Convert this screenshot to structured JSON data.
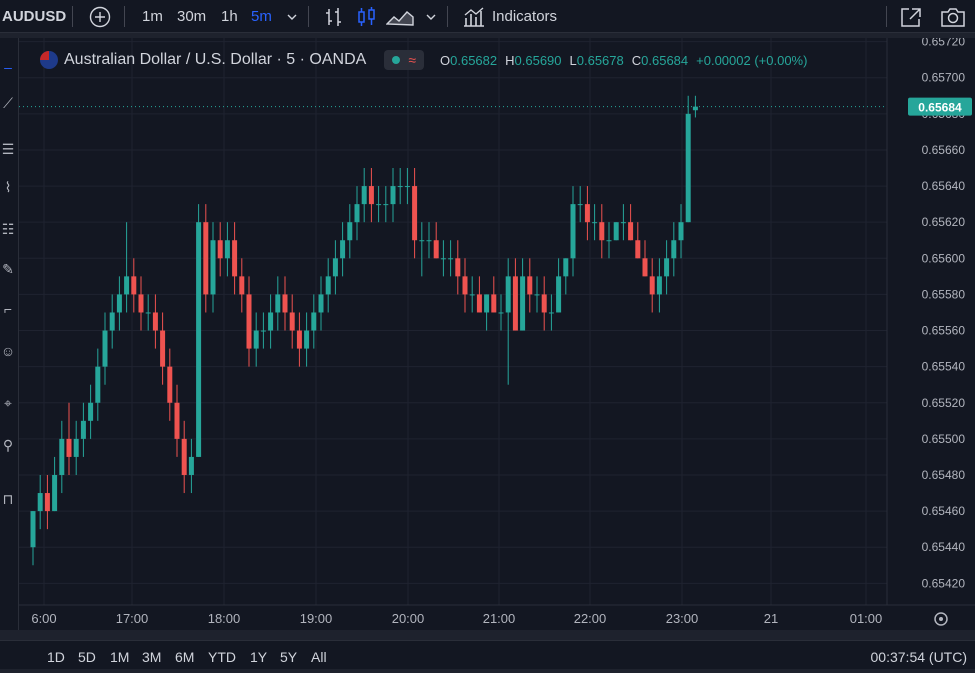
{
  "topbar": {
    "symbol": "AUDUSD",
    "timeframes": [
      "1m",
      "30m",
      "1h",
      "5m"
    ],
    "active_timeframe": "5m",
    "indicators_label": "Indicators"
  },
  "legend": {
    "title": "Australian Dollar / U.S. Dollar · 5 · OANDA",
    "o_label": "O",
    "o_value": "0.65682",
    "h_label": "H",
    "h_value": "0.65690",
    "l_label": "L",
    "l_value": "0.65678",
    "c_label": "C",
    "c_value": "0.65684",
    "change": "+0.00002 (+0.00%)"
  },
  "price_tag": "0.65684",
  "bottombar": {
    "ranges": [
      "1D",
      "5D",
      "1M",
      "3M",
      "6M",
      "YTD",
      "1Y",
      "5Y",
      "All"
    ],
    "clock": "00:37:54 (UTC)"
  },
  "colors": {
    "up": "#26a69a",
    "down": "#ef5350",
    "bg": "#131722",
    "grid": "#1f2330"
  },
  "chart_data": {
    "type": "candlestick",
    "y_ticks": [
      "0.65720",
      "0.65700",
      "0.65680",
      "0.65660",
      "0.65640",
      "0.65620",
      "0.65600",
      "0.65580",
      "0.65560",
      "0.65540",
      "0.65520",
      "0.65500",
      "0.65480",
      "0.65460",
      "0.65440",
      "0.65420"
    ],
    "x_ticks": [
      "6:00",
      "17:00",
      "18:00",
      "19:00",
      "20:00",
      "21:00",
      "22:00",
      "23:00",
      "21",
      "01:00"
    ],
    "ylim": [
      0.65408,
      0.65722
    ],
    "candles": [
      [
        0.6544,
        0.6546,
        0.6543,
        0.6546
      ],
      [
        0.6546,
        0.6548,
        0.6545,
        0.6547
      ],
      [
        0.6547,
        0.6548,
        0.6545,
        0.6546
      ],
      [
        0.6546,
        0.6549,
        0.6546,
        0.6548
      ],
      [
        0.6548,
        0.6551,
        0.6547,
        0.655
      ],
      [
        0.655,
        0.6552,
        0.6548,
        0.6549
      ],
      [
        0.6549,
        0.6551,
        0.6548,
        0.655
      ],
      [
        0.655,
        0.6552,
        0.6549,
        0.6551
      ],
      [
        0.6551,
        0.6553,
        0.655,
        0.6552
      ],
      [
        0.6552,
        0.6555,
        0.6551,
        0.6554
      ],
      [
        0.6554,
        0.6557,
        0.6553,
        0.6556
      ],
      [
        0.6556,
        0.6558,
        0.6555,
        0.6557
      ],
      [
        0.6557,
        0.6559,
        0.6556,
        0.6558
      ],
      [
        0.6558,
        0.6562,
        0.6557,
        0.6559
      ],
      [
        0.6559,
        0.656,
        0.6557,
        0.6558
      ],
      [
        0.6558,
        0.6559,
        0.6556,
        0.6557
      ],
      [
        0.6557,
        0.6558,
        0.6556,
        0.6557
      ],
      [
        0.6557,
        0.6558,
        0.6555,
        0.6556
      ],
      [
        0.6556,
        0.6557,
        0.6553,
        0.6554
      ],
      [
        0.6554,
        0.6555,
        0.6551,
        0.6552
      ],
      [
        0.6552,
        0.6553,
        0.6549,
        0.655
      ],
      [
        0.655,
        0.6551,
        0.6547,
        0.6548
      ],
      [
        0.6548,
        0.655,
        0.6547,
        0.6549
      ],
      [
        0.6549,
        0.6563,
        0.6549,
        0.6562
      ],
      [
        0.6562,
        0.6563,
        0.6557,
        0.6558
      ],
      [
        0.6558,
        0.6562,
        0.6557,
        0.6561
      ],
      [
        0.6561,
        0.6562,
        0.6559,
        0.656
      ],
      [
        0.656,
        0.6562,
        0.6559,
        0.6561
      ],
      [
        0.6561,
        0.6562,
        0.6558,
        0.6559
      ],
      [
        0.6559,
        0.656,
        0.6557,
        0.6558
      ],
      [
        0.6558,
        0.6559,
        0.6554,
        0.6555
      ],
      [
        0.6555,
        0.6557,
        0.6554,
        0.6556
      ],
      [
        0.6556,
        0.6557,
        0.6555,
        0.6556
      ],
      [
        0.6556,
        0.6558,
        0.6555,
        0.6557
      ],
      [
        0.6557,
        0.6559,
        0.6556,
        0.6558
      ],
      [
        0.6558,
        0.6559,
        0.6556,
        0.6557
      ],
      [
        0.6557,
        0.6558,
        0.6555,
        0.6556
      ],
      [
        0.6556,
        0.6557,
        0.6554,
        0.6555
      ],
      [
        0.6555,
        0.6557,
        0.6554,
        0.6556
      ],
      [
        0.6556,
        0.6558,
        0.6555,
        0.6557
      ],
      [
        0.6557,
        0.6559,
        0.6556,
        0.6558
      ],
      [
        0.6558,
        0.656,
        0.6557,
        0.6559
      ],
      [
        0.6559,
        0.6561,
        0.6558,
        0.656
      ],
      [
        0.656,
        0.6562,
        0.6559,
        0.6561
      ],
      [
        0.6561,
        0.6563,
        0.656,
        0.6562
      ],
      [
        0.6562,
        0.6564,
        0.6561,
        0.6563
      ],
      [
        0.6563,
        0.6565,
        0.6562,
        0.6564
      ],
      [
        0.6564,
        0.6565,
        0.6562,
        0.6563
      ],
      [
        0.6563,
        0.6564,
        0.6562,
        0.6563
      ],
      [
        0.6563,
        0.6564,
        0.6562,
        0.6563
      ],
      [
        0.6563,
        0.6565,
        0.6562,
        0.6564
      ],
      [
        0.6564,
        0.6565,
        0.6563,
        0.6564
      ],
      [
        0.6564,
        0.6565,
        0.6563,
        0.6564
      ],
      [
        0.6564,
        0.6565,
        0.656,
        0.6561
      ],
      [
        0.6561,
        0.6562,
        0.6559,
        0.6561
      ],
      [
        0.6561,
        0.6562,
        0.656,
        0.6561
      ],
      [
        0.6561,
        0.6562,
        0.656,
        0.656
      ],
      [
        0.656,
        0.6561,
        0.6559,
        0.656
      ],
      [
        0.656,
        0.6561,
        0.6559,
        0.656
      ],
      [
        0.656,
        0.6561,
        0.6558,
        0.6559
      ],
      [
        0.6559,
        0.656,
        0.6557,
        0.6558
      ],
      [
        0.6558,
        0.6559,
        0.6557,
        0.6558
      ],
      [
        0.6558,
        0.6559,
        0.6557,
        0.6557
      ],
      [
        0.6557,
        0.6558,
        0.6556,
        0.6558
      ],
      [
        0.6558,
        0.6559,
        0.6557,
        0.6557
      ],
      [
        0.6557,
        0.6558,
        0.6556,
        0.6557
      ],
      [
        0.6557,
        0.656,
        0.6553,
        0.6559
      ],
      [
        0.6559,
        0.656,
        0.6556,
        0.6556
      ],
      [
        0.6556,
        0.656,
        0.6556,
        0.6559
      ],
      [
        0.6559,
        0.656,
        0.6557,
        0.6558
      ],
      [
        0.6558,
        0.6559,
        0.6557,
        0.6558
      ],
      [
        0.6558,
        0.6559,
        0.6556,
        0.6557
      ],
      [
        0.6557,
        0.6558,
        0.6556,
        0.6557
      ],
      [
        0.6557,
        0.656,
        0.6557,
        0.6559
      ],
      [
        0.6559,
        0.656,
        0.6558,
        0.656
      ],
      [
        0.656,
        0.6564,
        0.6559,
        0.6563
      ],
      [
        0.6563,
        0.6564,
        0.6562,
        0.6563
      ],
      [
        0.6563,
        0.6564,
        0.6561,
        0.6562
      ],
      [
        0.6562,
        0.6563,
        0.6561,
        0.6562
      ],
      [
        0.6562,
        0.6563,
        0.656,
        0.6561
      ],
      [
        0.6561,
        0.6562,
        0.656,
        0.6561
      ],
      [
        0.6561,
        0.6562,
        0.6561,
        0.6562
      ],
      [
        0.6562,
        0.6563,
        0.6561,
        0.6562
      ],
      [
        0.6562,
        0.6563,
        0.6561,
        0.6561
      ],
      [
        0.6561,
        0.6562,
        0.656,
        0.656
      ],
      [
        0.656,
        0.6561,
        0.6559,
        0.6559
      ],
      [
        0.6559,
        0.656,
        0.6557,
        0.6558
      ],
      [
        0.6558,
        0.656,
        0.6557,
        0.6559
      ],
      [
        0.6559,
        0.6561,
        0.6558,
        0.656
      ],
      [
        0.656,
        0.6562,
        0.6559,
        0.6561
      ],
      [
        0.6561,
        0.6563,
        0.656,
        0.6562
      ],
      [
        0.6562,
        0.6569,
        0.6562,
        0.6568
      ],
      [
        0.65682,
        0.6569,
        0.65678,
        0.65684
      ]
    ]
  }
}
